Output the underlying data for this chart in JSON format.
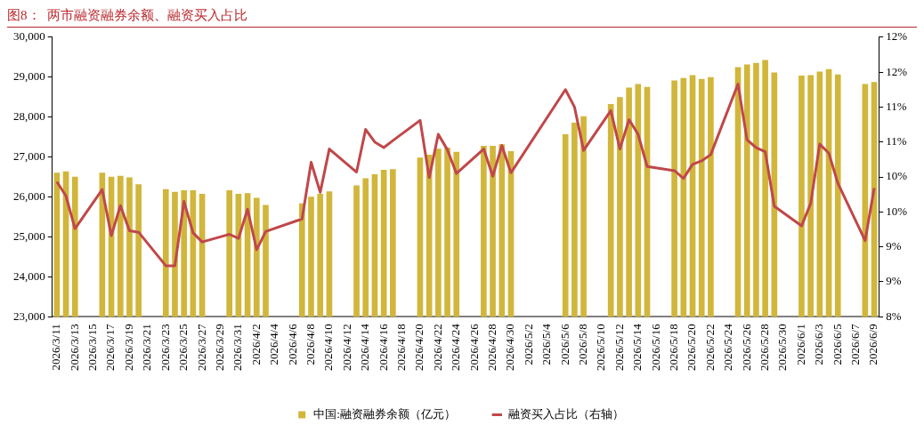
{
  "chart_data": {
    "type": "bar",
    "title": "图8：  两市融资融券余额、融资买入占比",
    "x": [
      "2026-03-11",
      "2026-03-12",
      "2026-03-13",
      "2026-03-16",
      "2026-03-17",
      "2026-03-18",
      "2026-03-19",
      "2026-03-20",
      "2026-03-23",
      "2026-03-24",
      "2026-03-25",
      "2026-03-26",
      "2026-03-27",
      "2026-03-30",
      "2026-03-31",
      "2026-04-01",
      "2026-04-02",
      "2026-04-03",
      "2026-04-07",
      "2026-04-08",
      "2026-04-09",
      "2026-04-10",
      "2026-04-13",
      "2026-04-14",
      "2026-04-15",
      "2026-04-16",
      "2026-04-17",
      "2026-04-20",
      "2026-04-21",
      "2026-04-22",
      "2026-04-23",
      "2026-04-24",
      "2026-04-27",
      "2026-04-28",
      "2026-04-29",
      "2026-04-30",
      "2026-05-06",
      "2026-05-07",
      "2026-05-08",
      "2026-05-11",
      "2026-05-12",
      "2026-05-13",
      "2026-05-14",
      "2026-05-15",
      "2026-05-18",
      "2026-05-19",
      "2026-05-20",
      "2026-05-21",
      "2026-05-22",
      "2026-05-25",
      "2026-05-26",
      "2026-05-27",
      "2026-05-28",
      "2026-05-29",
      "2026-06-01",
      "2026-06-02",
      "2026-06-03",
      "2026-06-04",
      "2026-06-05",
      "2026-06-08",
      "2026-06-09"
    ],
    "series": [
      {
        "name": "中国:融资融券余额（亿元）",
        "color": "#d1b63b",
        "values": [
          26600,
          26630,
          26500,
          26600,
          26500,
          26520,
          26480,
          26310,
          26190,
          26120,
          26160,
          26160,
          26070,
          26160,
          26070,
          26090,
          25970,
          25790,
          25830,
          26000,
          26070,
          26130,
          26280,
          26460,
          26560,
          26670,
          26690,
          26980,
          27050,
          27200,
          27230,
          27120,
          27270,
          27270,
          27310,
          27140,
          27560,
          27850,
          28010,
          28320,
          28490,
          28730,
          28820,
          28750,
          28910,
          28970,
          29040,
          28950,
          28990,
          29240,
          29310,
          29350,
          29420,
          29110,
          29030,
          29040,
          29130,
          29190,
          29060,
          28820,
          28870
        ]
      },
      {
        "name": "融资买入占比（右轴）",
        "type": "line",
        "axis": "y2",
        "color": "#c0474a",
        "values": [
          9.93,
          9.73,
          9.26,
          9.82,
          9.16,
          9.59,
          9.23,
          9.21,
          8.73,
          8.73,
          9.65,
          9.2,
          9.07,
          9.18,
          9.12,
          9.54,
          8.96,
          9.22,
          9.4,
          10.21,
          9.78,
          10.4,
          10.07,
          10.68,
          10.5,
          10.42,
          10.52,
          10.81,
          9.99,
          10.61,
          10.39,
          10.05,
          10.4,
          10.01,
          10.45,
          10.06,
          11.25,
          11.0,
          10.38,
          10.95,
          10.4,
          10.82,
          10.61,
          10.15,
          10.09,
          9.98,
          10.18,
          10.23,
          10.32,
          11.33,
          10.53,
          10.42,
          10.36,
          9.58,
          9.3,
          9.62,
          10.47,
          10.34,
          9.91,
          9.09,
          9.84
        ]
      }
    ],
    "xlim": [
      "2026-03-10T12:00",
      "2026-06-09T12:00"
    ],
    "xticks": [
      {
        "value": "2026-03-11",
        "label": "2026/3/11"
      },
      {
        "value": "2026-03-13",
        "label": "2026/3/13"
      },
      {
        "value": "2026-03-15",
        "label": "2026/3/15"
      },
      {
        "value": "2026-03-17",
        "label": "2026/3/17"
      },
      {
        "value": "2026-03-19",
        "label": "2026/3/19"
      },
      {
        "value": "2026-03-21",
        "label": "2026/3/21"
      },
      {
        "value": "2026-03-23",
        "label": "2026/3/23"
      },
      {
        "value": "2026-03-25",
        "label": "2026/3/25"
      },
      {
        "value": "2026-03-27",
        "label": "2026/3/27"
      },
      {
        "value": "2026-03-29",
        "label": "2026/3/29"
      },
      {
        "value": "2026-03-31",
        "label": "2026/3/31"
      },
      {
        "value": "2026-04-02",
        "label": "2026/4/2"
      },
      {
        "value": "2026-04-04",
        "label": "2026/4/4"
      },
      {
        "value": "2026-04-06",
        "label": "2026/4/6"
      },
      {
        "value": "2026-04-08",
        "label": "2026/4/8"
      },
      {
        "value": "2026-04-10",
        "label": "2026/4/10"
      },
      {
        "value": "2026-04-12",
        "label": "2026/4/12"
      },
      {
        "value": "2026-04-14",
        "label": "2026/4/14"
      },
      {
        "value": "2026-04-16",
        "label": "2026/4/16"
      },
      {
        "value": "2026-04-18",
        "label": "2026/4/18"
      },
      {
        "value": "2026-04-20",
        "label": "2026/4/20"
      },
      {
        "value": "2026-04-22",
        "label": "2026/4/22"
      },
      {
        "value": "2026-04-24",
        "label": "2026/4/24"
      },
      {
        "value": "2026-04-26",
        "label": "2026/4/26"
      },
      {
        "value": "2026-04-28",
        "label": "2026/4/28"
      },
      {
        "value": "2026-04-30",
        "label": "2026/4/30"
      },
      {
        "value": "2026-05-02",
        "label": "2026/5/2"
      },
      {
        "value": "2026-05-04",
        "label": "2026/5/4"
      },
      {
        "value": "2026-05-06",
        "label": "2026/5/6"
      },
      {
        "value": "2026-05-08",
        "label": "2026/5/8"
      },
      {
        "value": "2026-05-10",
        "label": "2026/5/10"
      },
      {
        "value": "2026-05-12",
        "label": "2026/5/12"
      },
      {
        "value": "2026-05-14",
        "label": "2026/5/14"
      },
      {
        "value": "2026-05-16",
        "label": "2026/5/16"
      },
      {
        "value": "2026-05-18",
        "label": "2026/5/18"
      },
      {
        "value": "2026-05-20",
        "label": "2026/5/20"
      },
      {
        "value": "2026-05-22",
        "label": "2026/5/22"
      },
      {
        "value": "2026-05-24",
        "label": "2026/5/24"
      },
      {
        "value": "2026-05-26",
        "label": "2026/5/26"
      },
      {
        "value": "2026-05-28",
        "label": "2026/5/28"
      },
      {
        "value": "2026-05-30",
        "label": "2026/5/30"
      },
      {
        "value": "2026-06-01",
        "label": "2026/6/1"
      },
      {
        "value": "2026-06-03",
        "label": "2026/6/3"
      },
      {
        "value": "2026-06-05",
        "label": "2026/6/5"
      },
      {
        "value": "2026-06-07",
        "label": "2026/6/7"
      },
      {
        "value": "2026-06-09",
        "label": "2026/6/9"
      }
    ],
    "ylim": [
      23000,
      30000
    ],
    "yticks": [
      {
        "value": 23000,
        "label": "23,000"
      },
      {
        "value": 24000,
        "label": "24,000"
      },
      {
        "value": 25000,
        "label": "25,000"
      },
      {
        "value": 26000,
        "label": "26,000"
      },
      {
        "value": 27000,
        "label": "27,000"
      },
      {
        "value": 28000,
        "label": "28,000"
      },
      {
        "value": 29000,
        "label": "29,000"
      },
      {
        "value": 30000,
        "label": "30,000"
      }
    ],
    "y2lim": [
      8,
      12
    ],
    "y2ticks": [
      {
        "value": 8,
        "label": "8%"
      },
      {
        "value": 8.5,
        "label": "9%"
      },
      {
        "value": 9,
        "label": "9%"
      },
      {
        "value": 9.5,
        "label": "10%"
      },
      {
        "value": 10,
        "label": "10%"
      },
      {
        "value": 10.5,
        "label": "11%"
      },
      {
        "value": 11,
        "label": "11%"
      },
      {
        "value": 12,
        "label": "12%"
      },
      {
        "value": 11.5,
        "label": "12%"
      }
    ],
    "grid": false,
    "legend": "bottom",
    "marker": "none",
    "line_style": "solid"
  }
}
